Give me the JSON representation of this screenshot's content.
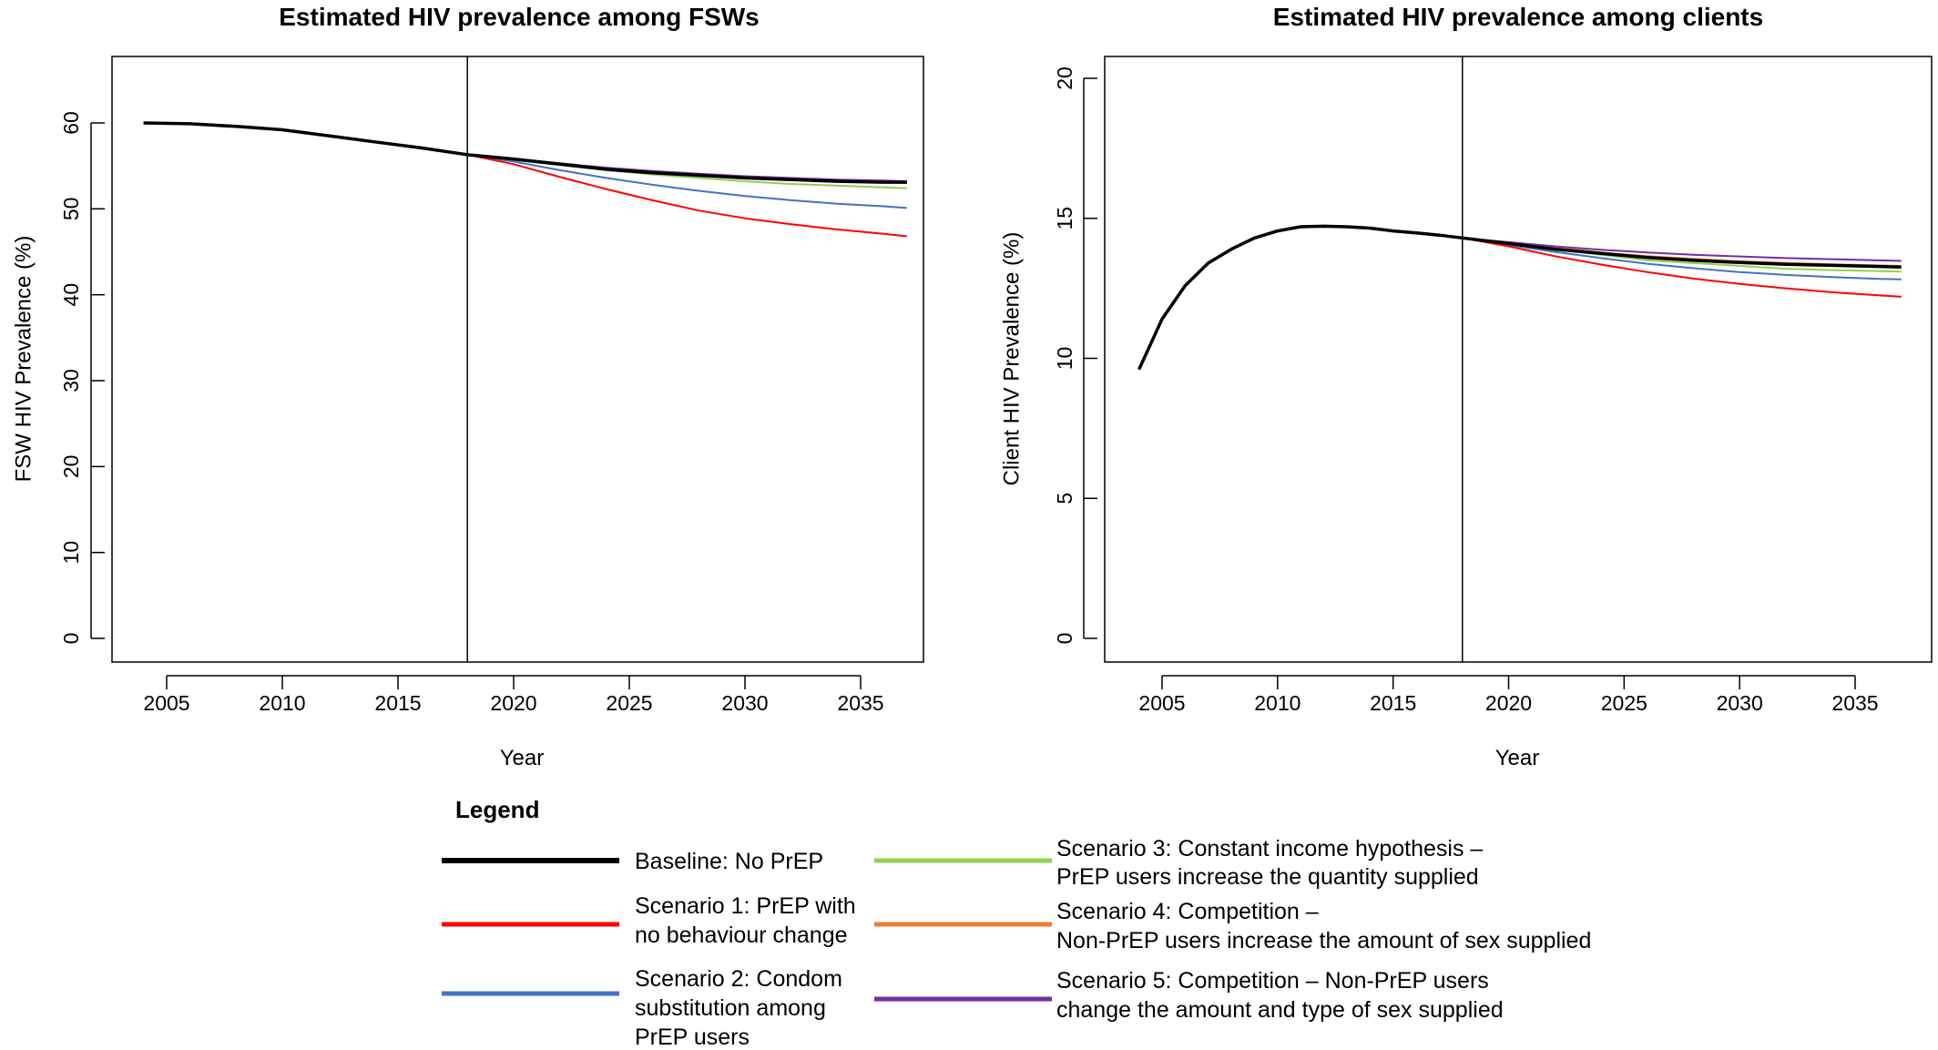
{
  "chart_data": [
    {
      "type": "line",
      "title": "Estimated HIV prevalence among FSWs",
      "xlabel": "Year",
      "ylabel": "FSW HIV Prevalence (%)",
      "xlim": [
        2004,
        2037
      ],
      "ylim": [
        0,
        65
      ],
      "xticks": [
        2005,
        2010,
        2015,
        2020,
        2025,
        2030,
        2035
      ],
      "yticks": [
        0,
        10,
        20,
        30,
        40,
        50,
        60
      ],
      "vline": 2018,
      "grid": false,
      "series": [
        {
          "key": "baseline",
          "x": [
            2004,
            2006,
            2008,
            2010,
            2012,
            2014,
            2016,
            2018,
            2020,
            2022,
            2024,
            2026,
            2028,
            2030,
            2032,
            2034,
            2036,
            2037
          ],
          "y": [
            60.0,
            59.9,
            59.6,
            59.2,
            58.5,
            57.8,
            57.1,
            56.3,
            55.8,
            55.2,
            54.6,
            54.2,
            53.9,
            53.6,
            53.4,
            53.2,
            53.1,
            53.1
          ]
        },
        {
          "key": "s3",
          "x": [
            2018,
            2020,
            2022,
            2024,
            2026,
            2028,
            2030,
            2032,
            2034,
            2036,
            2037
          ],
          "y": [
            56.3,
            55.7,
            55.1,
            54.5,
            54.0,
            53.6,
            53.2,
            52.9,
            52.7,
            52.5,
            52.4
          ]
        },
        {
          "key": "s4",
          "x": [
            2018,
            2020,
            2022,
            2024,
            2026,
            2028,
            2030,
            2032,
            2034,
            2036,
            2037
          ],
          "y": [
            56.3,
            55.8,
            55.2,
            54.6,
            54.2,
            53.9,
            53.6,
            53.4,
            53.2,
            53.1,
            53.0
          ]
        },
        {
          "key": "s5",
          "x": [
            2018,
            2020,
            2022,
            2024,
            2026,
            2028,
            2030,
            2032,
            2034,
            2036,
            2037
          ],
          "y": [
            56.3,
            55.8,
            55.3,
            54.8,
            54.4,
            54.1,
            53.8,
            53.6,
            53.4,
            53.3,
            53.2
          ]
        },
        {
          "key": "s2",
          "x": [
            2018,
            2020,
            2022,
            2024,
            2026,
            2028,
            2030,
            2032,
            2034,
            2036,
            2037
          ],
          "y": [
            56.3,
            55.5,
            54.5,
            53.6,
            52.8,
            52.1,
            51.5,
            51.0,
            50.6,
            50.3,
            50.1
          ]
        },
        {
          "key": "s1",
          "x": [
            2018,
            2020,
            2022,
            2024,
            2026,
            2028,
            2030,
            2032,
            2034,
            2036,
            2037
          ],
          "y": [
            56.3,
            55.2,
            53.7,
            52.3,
            51.0,
            49.8,
            48.9,
            48.2,
            47.6,
            47.1,
            46.8
          ]
        }
      ]
    },
    {
      "type": "line",
      "title": "Estimated HIV prevalence among clients",
      "xlabel": "Year",
      "ylabel": "Client HIV Prevalence (%)",
      "xlim": [
        2004,
        2037
      ],
      "ylim": [
        0,
        20.5
      ],
      "xticks": [
        2005,
        2010,
        2015,
        2020,
        2025,
        2030,
        2035
      ],
      "yticks": [
        0,
        5,
        10,
        15,
        20
      ],
      "vline": 2018,
      "grid": false,
      "series": [
        {
          "key": "baseline",
          "x": [
            2004,
            2005,
            2006,
            2007,
            2008,
            2009,
            2010,
            2011,
            2012,
            2013,
            2014,
            2015,
            2016,
            2017,
            2018,
            2020,
            2022,
            2024,
            2026,
            2028,
            2030,
            2032,
            2034,
            2036,
            2037
          ],
          "y": [
            9.6,
            11.4,
            12.6,
            13.4,
            13.9,
            14.3,
            14.55,
            14.7,
            14.72,
            14.7,
            14.65,
            14.55,
            14.48,
            14.4,
            14.3,
            14.1,
            13.9,
            13.75,
            13.6,
            13.5,
            13.42,
            13.36,
            13.32,
            13.28,
            13.26
          ]
        },
        {
          "key": "s3",
          "x": [
            2018,
            2020,
            2022,
            2024,
            2026,
            2028,
            2030,
            2032,
            2034,
            2036,
            2037
          ],
          "y": [
            14.3,
            14.1,
            13.9,
            13.7,
            13.5,
            13.4,
            13.3,
            13.2,
            13.15,
            13.12,
            13.1
          ]
        },
        {
          "key": "s4",
          "x": [
            2018,
            2020,
            2022,
            2024,
            2026,
            2028,
            2030,
            2032,
            2034,
            2036,
            2037
          ],
          "y": [
            14.3,
            14.1,
            13.95,
            13.78,
            13.65,
            13.55,
            13.47,
            13.41,
            13.36,
            13.32,
            13.3
          ]
        },
        {
          "key": "s5",
          "x": [
            2018,
            2020,
            2022,
            2024,
            2026,
            2028,
            2030,
            2032,
            2034,
            2036,
            2037
          ],
          "y": [
            14.3,
            14.15,
            14.0,
            13.88,
            13.78,
            13.7,
            13.64,
            13.58,
            13.54,
            13.5,
            13.48
          ]
        },
        {
          "key": "s2",
          "x": [
            2018,
            2020,
            2022,
            2024,
            2026,
            2028,
            2030,
            2032,
            2034,
            2036,
            2037
          ],
          "y": [
            14.3,
            14.05,
            13.8,
            13.58,
            13.38,
            13.22,
            13.08,
            12.98,
            12.9,
            12.84,
            12.82
          ]
        },
        {
          "key": "s1",
          "x": [
            2018,
            2020,
            2022,
            2024,
            2026,
            2028,
            2030,
            2032,
            2034,
            2036,
            2037
          ],
          "y": [
            14.3,
            14.0,
            13.65,
            13.35,
            13.08,
            12.85,
            12.66,
            12.5,
            12.36,
            12.25,
            12.2
          ]
        }
      ]
    }
  ],
  "legend": {
    "title": "Legend",
    "placement": "bottom",
    "entries": [
      {
        "key": "baseline",
        "color": "#000000",
        "lines": [
          "Baseline: No PrEP"
        ]
      },
      {
        "key": "s1",
        "color": "#ff0000",
        "lines": [
          "Scenario 1: PrEP with",
          "no behaviour change"
        ]
      },
      {
        "key": "s2",
        "color": "#4472c4",
        "lines": [
          "Scenario 2: Condom",
          "substitution among",
          "PrEP users"
        ]
      },
      {
        "key": "s3",
        "color": "#92d050",
        "lines": [
          "Scenario 3: Constant income hypothesis –",
          "PrEP users increase the quantity supplied"
        ]
      },
      {
        "key": "s4",
        "color": "#ed7d31",
        "lines": [
          "Scenario 4: Competition –",
          "Non-PrEP users increase the amount of sex supplied"
        ]
      },
      {
        "key": "s5",
        "color": "#7030a0",
        "lines": [
          "Scenario 5: Competition – Non-PrEP users",
          "change the amount and type of sex supplied"
        ]
      }
    ]
  }
}
